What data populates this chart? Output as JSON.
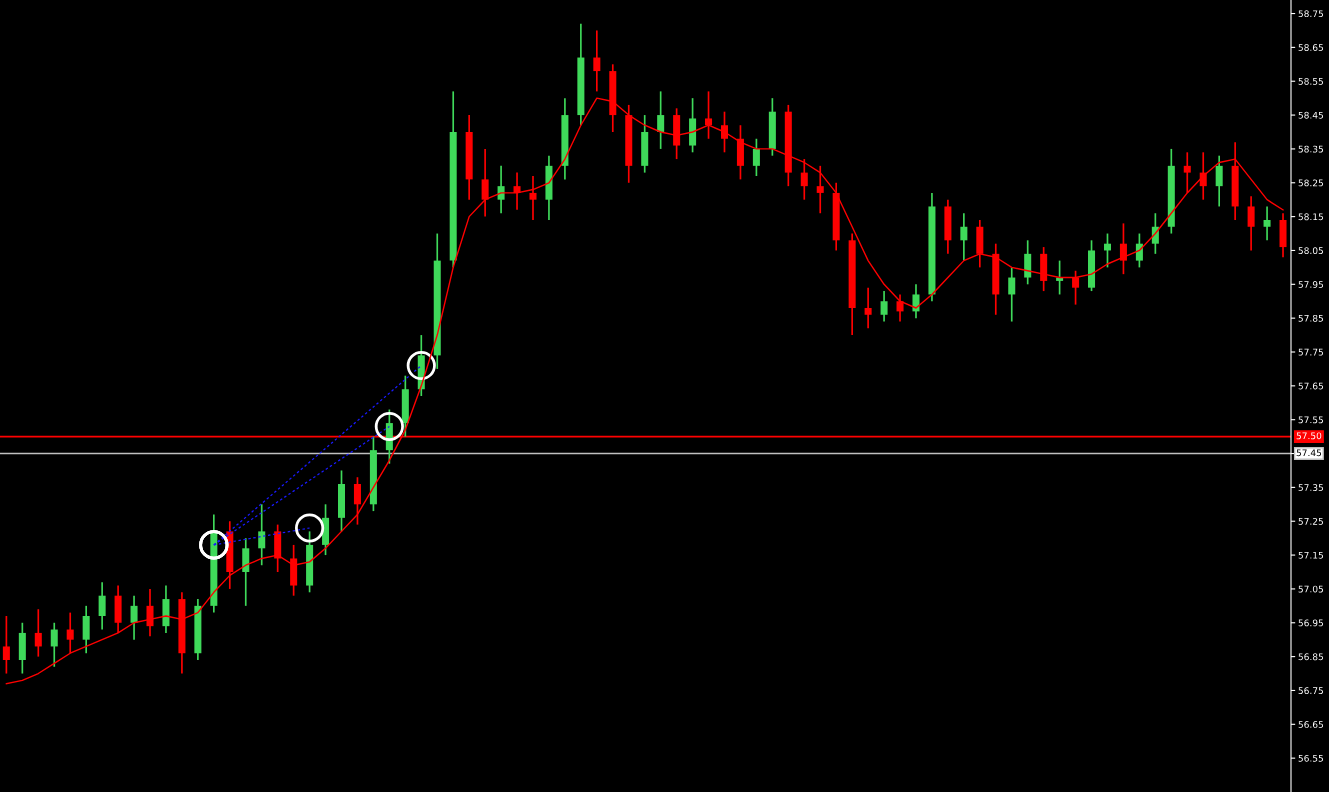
{
  "chart_data": {
    "type": "candlestick",
    "categories": [
      null,
      null,
      null,
      null,
      null,
      null,
      null,
      null,
      null,
      null,
      null,
      null,
      null,
      null,
      null,
      null,
      null,
      null,
      null,
      null,
      null,
      null,
      null,
      null,
      null,
      null,
      null,
      null,
      null,
      null,
      null,
      null,
      null,
      null,
      null,
      null,
      null,
      null,
      null,
      null,
      null,
      null,
      null,
      null,
      null,
      null,
      null,
      null,
      null,
      null,
      null,
      null,
      null,
      null,
      null,
      null,
      null,
      null,
      null,
      null,
      null,
      null,
      null,
      null,
      null,
      null,
      null,
      null,
      null,
      null,
      null,
      null,
      null,
      null,
      null,
      null,
      null,
      null,
      null,
      null,
      null
    ],
    "series": [
      {
        "type": "line",
        "color": "#ff0000",
        "values": [
          56.77,
          56.78,
          56.8,
          56.83,
          56.86,
          56.88,
          56.9,
          56.92,
          56.95,
          56.96,
          56.97,
          56.96,
          56.98,
          57.04,
          57.09,
          57.12,
          57.14,
          57.15,
          57.12,
          57.13,
          57.17,
          57.22,
          57.27,
          57.35,
          57.43,
          57.52,
          57.65,
          57.8,
          58.0,
          58.15,
          58.2,
          58.22,
          58.22,
          58.23,
          58.25,
          58.32,
          58.42,
          58.5,
          58.49,
          58.45,
          58.42,
          58.4,
          58.39,
          58.4,
          58.42,
          58.4,
          58.37,
          58.35,
          58.35,
          58.33,
          58.31,
          58.28,
          58.22,
          58.12,
          58.02,
          57.95,
          57.9,
          57.88,
          57.92,
          57.97,
          58.02,
          58.04,
          58.03,
          58.0,
          57.99,
          57.98,
          57.97,
          57.97,
          57.98,
          58.01,
          58.03,
          58.05,
          58.1,
          58.16,
          58.22,
          58.27,
          58.31,
          58.32,
          58.26,
          58.2,
          58.17
        ]
      },
      {
        "type": "line",
        "color": "#1a1aff",
        "line_style": "dashed",
        "marker": "circle",
        "values": [
          null,
          null,
          null,
          null,
          null,
          null,
          null,
          null,
          null,
          null,
          null,
          null,
          null,
          57.18,
          null,
          null,
          null,
          null,
          null,
          57.23,
          null,
          null,
          null,
          null,
          null,
          null,
          null,
          null,
          null,
          null,
          null,
          null,
          null,
          null,
          null,
          null,
          null,
          null,
          null,
          null,
          null,
          null,
          null,
          null,
          null,
          null,
          null,
          null,
          null,
          null,
          null,
          null,
          null,
          null,
          null,
          null,
          null,
          null,
          null,
          null,
          null,
          null,
          null,
          null,
          null,
          null,
          null,
          null,
          null,
          null,
          null,
          null,
          null,
          null,
          null,
          null,
          null,
          null,
          null,
          null,
          null
        ]
      },
      {
        "type": "line",
        "color": "#1a1aff",
        "line_style": "dashed",
        "marker": "circle",
        "values": [
          null,
          null,
          null,
          null,
          null,
          null,
          null,
          null,
          null,
          null,
          null,
          null,
          null,
          57.18,
          null,
          null,
          null,
          null,
          null,
          null,
          null,
          null,
          null,
          null,
          57.53,
          null,
          null,
          null,
          null,
          null,
          null,
          null,
          null,
          null,
          null,
          null,
          null,
          null,
          null,
          null,
          null,
          null,
          null,
          null,
          null,
          null,
          null,
          null,
          null,
          null,
          null,
          null,
          null,
          null,
          null,
          null,
          null,
          null,
          null,
          null,
          null,
          null,
          null,
          null,
          null,
          null,
          null,
          null,
          null,
          null,
          null,
          null,
          null,
          null,
          null,
          null,
          null,
          null,
          null,
          null,
          null
        ]
      },
      {
        "type": "line",
        "color": "#1a1aff",
        "line_style": "dashed",
        "marker": "circle",
        "values": [
          null,
          null,
          null,
          null,
          null,
          null,
          null,
          null,
          null,
          null,
          null,
          null,
          null,
          57.18,
          null,
          null,
          null,
          null,
          null,
          null,
          null,
          null,
          null,
          null,
          null,
          null,
          57.71,
          null,
          null,
          null,
          null,
          null,
          null,
          null,
          null,
          null,
          null,
          null,
          null,
          null,
          null,
          null,
          null,
          null,
          null,
          null,
          null,
          null,
          null,
          null,
          null,
          null,
          null,
          null,
          null,
          null,
          null,
          null,
          null,
          null,
          null,
          null,
          null,
          null,
          null,
          null,
          null,
          null,
          null,
          null,
          null,
          null,
          null,
          null,
          null,
          null,
          null,
          null,
          null,
          null,
          null
        ]
      },
      {
        "type": "candlestick",
        "colors": [
          "#ff0000",
          "#3fd95a",
          "#ff0000",
          "#3fd95a",
          "#ff0000",
          "#3fd95a",
          "#3fd95a",
          "#ff0000",
          "#3fd95a",
          "#ff0000",
          "#3fd95a",
          "#ff0000",
          "#3fd95a",
          "#3fd95a",
          "#ff0000",
          "#3fd95a",
          "#3fd95a",
          "#ff0000",
          "#ff0000",
          "#3fd95a",
          "#3fd95a",
          "#3fd95a",
          "#ff0000",
          "#3fd95a",
          "#3fd95a",
          "#3fd95a",
          "#3fd95a",
          "#3fd95a",
          "#3fd95a",
          "#ff0000",
          "#ff0000",
          "#3fd95a",
          "#ff0000",
          "#ff0000",
          "#3fd95a",
          "#3fd95a",
          "#3fd95a",
          "#ff0000",
          "#ff0000",
          "#ff0000",
          "#3fd95a",
          "#3fd95a",
          "#ff0000",
          "#3fd95a",
          "#ff0000",
          "#ff0000",
          "#ff0000",
          "#3fd95a",
          "#3fd95a",
          "#ff0000",
          "#ff0000",
          "#ff0000",
          "#ff0000",
          "#ff0000",
          "#ff0000",
          "#3fd95a",
          "#ff0000",
          "#3fd95a",
          "#3fd95a",
          "#ff0000",
          "#3fd95a",
          "#ff0000",
          "#ff0000",
          "#3fd95a",
          "#3fd95a",
          "#ff0000",
          "#3fd95a",
          "#ff0000",
          "#3fd95a",
          "#3fd95a",
          "#ff0000",
          "#3fd95a",
          "#3fd95a",
          "#3fd95a",
          "#ff0000",
          "#ff0000",
          "#3fd95a",
          "#ff0000",
          "#ff0000",
          "#3fd95a",
          "#ff0000"
        ],
        "ohlc": [
          [
            56.88,
            56.97,
            56.8,
            56.84
          ],
          [
            56.84,
            56.95,
            56.8,
            56.92
          ],
          [
            56.92,
            56.99,
            56.85,
            56.88
          ],
          [
            56.88,
            56.95,
            56.82,
            56.93
          ],
          [
            56.93,
            56.98,
            56.86,
            56.9
          ],
          [
            56.9,
            57.0,
            56.86,
            56.97
          ],
          [
            56.97,
            57.07,
            56.93,
            57.03
          ],
          [
            57.03,
            57.06,
            56.92,
            56.95
          ],
          [
            56.95,
            57.03,
            56.9,
            57.0
          ],
          [
            57.0,
            57.05,
            56.91,
            56.94
          ],
          [
            56.94,
            57.06,
            56.92,
            57.02
          ],
          [
            57.02,
            57.04,
            56.8,
            56.86
          ],
          [
            56.86,
            57.02,
            56.84,
            57.0
          ],
          [
            57.0,
            57.27,
            56.98,
            57.22
          ],
          [
            57.22,
            57.25,
            57.05,
            57.1
          ],
          [
            57.1,
            57.2,
            57.0,
            57.17
          ],
          [
            57.17,
            57.3,
            57.12,
            57.22
          ],
          [
            57.22,
            57.24,
            57.1,
            57.14
          ],
          [
            57.14,
            57.18,
            57.03,
            57.06
          ],
          [
            57.06,
            57.22,
            57.04,
            57.18
          ],
          [
            57.18,
            57.3,
            57.15,
            57.26
          ],
          [
            57.26,
            57.4,
            57.22,
            57.36
          ],
          [
            57.36,
            57.38,
            57.24,
            57.3
          ],
          [
            57.3,
            57.5,
            57.28,
            57.46
          ],
          [
            57.46,
            57.58,
            57.42,
            57.54
          ],
          [
            57.54,
            57.68,
            57.5,
            57.64
          ],
          [
            57.64,
            57.8,
            57.62,
            57.74
          ],
          [
            57.74,
            58.1,
            57.7,
            58.02
          ],
          [
            58.02,
            58.52,
            58.0,
            58.4
          ],
          [
            58.4,
            58.45,
            58.2,
            58.26
          ],
          [
            58.26,
            58.35,
            58.15,
            58.2
          ],
          [
            58.2,
            58.3,
            58.16,
            58.24
          ],
          [
            58.24,
            58.28,
            58.17,
            58.22
          ],
          [
            58.22,
            58.27,
            58.14,
            58.2
          ],
          [
            58.2,
            58.33,
            58.14,
            58.3
          ],
          [
            58.3,
            58.5,
            58.26,
            58.45
          ],
          [
            58.45,
            58.72,
            58.42,
            58.62
          ],
          [
            58.62,
            58.7,
            58.52,
            58.58
          ],
          [
            58.58,
            58.6,
            58.4,
            58.45
          ],
          [
            58.45,
            58.48,
            58.25,
            58.3
          ],
          [
            58.3,
            58.45,
            58.28,
            58.4
          ],
          [
            58.4,
            58.52,
            58.35,
            58.45
          ],
          [
            58.45,
            58.47,
            58.32,
            58.36
          ],
          [
            58.36,
            58.5,
            58.34,
            58.44
          ],
          [
            58.44,
            58.52,
            58.38,
            58.42
          ],
          [
            58.42,
            58.46,
            58.34,
            58.38
          ],
          [
            58.38,
            58.42,
            58.26,
            58.3
          ],
          [
            58.3,
            58.38,
            58.27,
            58.35
          ],
          [
            58.35,
            58.5,
            58.33,
            58.46
          ],
          [
            58.46,
            58.48,
            58.24,
            58.28
          ],
          [
            58.28,
            58.32,
            58.2,
            58.24
          ],
          [
            58.24,
            58.3,
            58.16,
            58.22
          ],
          [
            58.22,
            58.25,
            58.05,
            58.08
          ],
          [
            58.08,
            58.1,
            57.8,
            57.88
          ],
          [
            57.88,
            57.94,
            57.82,
            57.86
          ],
          [
            57.86,
            57.93,
            57.84,
            57.9
          ],
          [
            57.9,
            57.92,
            57.84,
            57.87
          ],
          [
            57.87,
            57.95,
            57.85,
            57.92
          ],
          [
            57.92,
            58.22,
            57.9,
            58.18
          ],
          [
            58.18,
            58.2,
            58.04,
            58.08
          ],
          [
            58.08,
            58.16,
            58.02,
            58.12
          ],
          [
            58.12,
            58.14,
            58.0,
            58.04
          ],
          [
            58.04,
            58.07,
            57.86,
            57.92
          ],
          [
            57.92,
            58.0,
            57.84,
            57.97
          ],
          [
            57.97,
            58.08,
            57.95,
            58.04
          ],
          [
            58.04,
            58.06,
            57.93,
            57.96
          ],
          [
            57.96,
            58.02,
            57.92,
            57.97
          ],
          [
            57.97,
            57.99,
            57.89,
            57.94
          ],
          [
            57.94,
            58.08,
            57.93,
            58.05
          ],
          [
            58.05,
            58.1,
            58.0,
            58.07
          ],
          [
            58.07,
            58.13,
            57.98,
            58.02
          ],
          [
            58.02,
            58.1,
            58.0,
            58.07
          ],
          [
            58.07,
            58.16,
            58.04,
            58.12
          ],
          [
            58.12,
            58.35,
            58.1,
            58.3
          ],
          [
            58.3,
            58.34,
            58.22,
            58.28
          ],
          [
            58.28,
            58.34,
            58.2,
            58.24
          ],
          [
            58.24,
            58.33,
            58.18,
            58.3
          ],
          [
            58.3,
            58.37,
            58.14,
            58.18
          ],
          [
            58.18,
            58.21,
            58.05,
            58.12
          ],
          [
            58.12,
            58.18,
            58.08,
            58.14
          ],
          [
            58.14,
            58.16,
            58.03,
            58.06
          ]
        ]
      }
    ],
    "ylim": [
      56.45,
      58.79
    ],
    "yticks": [
      56.55,
      56.65,
      56.75,
      56.85,
      56.95,
      57.05,
      57.15,
      57.25,
      57.35,
      {
        "value": 57.45,
        "label": null
      },
      57.55,
      57.65,
      57.75,
      57.85,
      57.95,
      58.05,
      58.15,
      58.25,
      58.35,
      58.45,
      58.55,
      58.65,
      58.75
    ],
    "ref_lines": [
      {
        "axis": "y",
        "value": 57.5,
        "label": "57.50",
        "color": "#ff0000"
      },
      {
        "axis": "y",
        "value": 57.45,
        "label": "57.45",
        "color": "#c0c0c0"
      }
    ],
    "grid": false,
    "legend": false
  }
}
